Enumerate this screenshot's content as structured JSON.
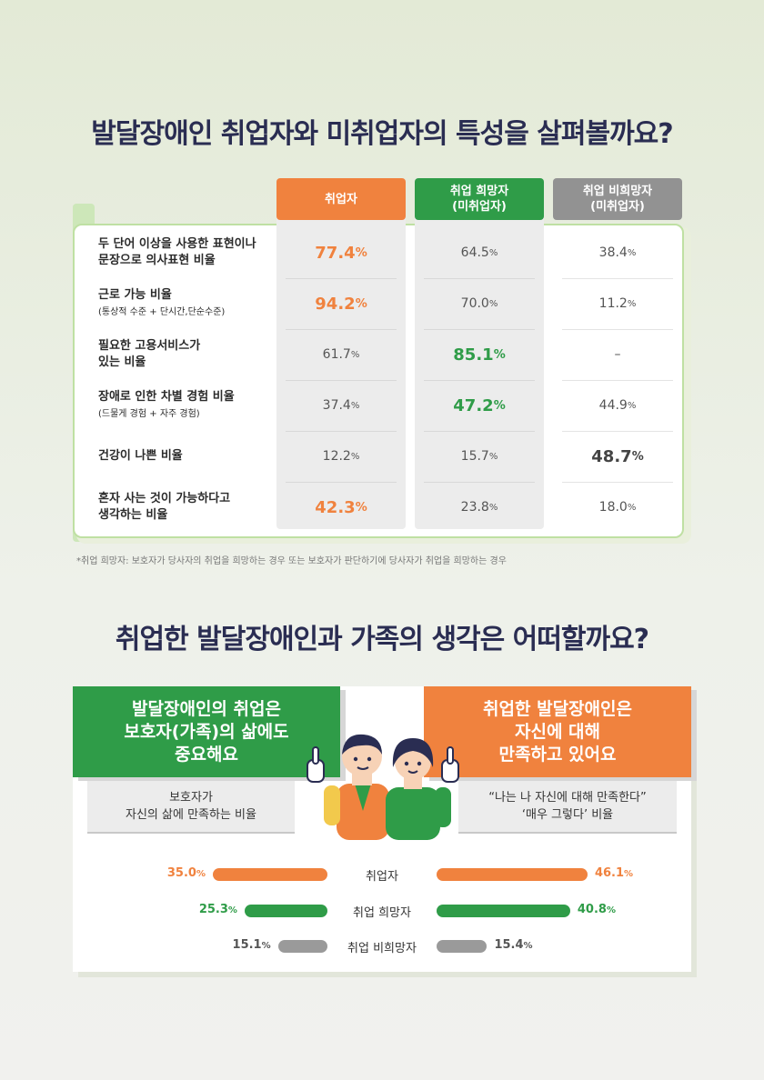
{
  "titles": {
    "table": "발달장애인 취업자와 미취업자의 특성을 살펴볼까요?",
    "satisfaction": "취업한 발달장애인과 가족의 생각은 어떠할까요?"
  },
  "colors": {
    "orange": "#f0823e",
    "green": "#2f9c48",
    "gray": "#929292",
    "navy": "#2a2d52"
  },
  "table": {
    "columns": [
      "취업자",
      "취업 희망자\n(미취업자)",
      "취업 비희망자\n(미취업자)"
    ],
    "rows": [
      {
        "label": "두 단어 이상을 사용한 표현이나",
        "label2": "문장으로 의사표현 비율",
        "sub": "",
        "values": [
          "77.4",
          "64.5",
          "38.4"
        ],
        "highlight": 0
      },
      {
        "label": "근로 가능 비율",
        "label2": "",
        "sub": "(통상적 수준 + 단시간,단순수준)",
        "values": [
          "94.2",
          "70.0",
          "11.2"
        ],
        "highlight": 0
      },
      {
        "label": "필요한 고용서비스가",
        "label2": "있는 비율",
        "sub": "",
        "values": [
          "61.7",
          "85.1",
          "–"
        ],
        "highlight": 1
      },
      {
        "label": "장애로 인한 차별 경험 비율",
        "label2": "",
        "sub": "(드물게 경험 + 자주 경험)",
        "values": [
          "37.4",
          "47.2",
          "44.9"
        ],
        "highlight": 1
      },
      {
        "label": "건강이 나쁜 비율",
        "label2": "",
        "sub": "",
        "values": [
          "12.2",
          "15.7",
          "48.7"
        ],
        "highlight": 2
      },
      {
        "label": "혼자 사는 것이 가능하다고",
        "label2": "생각하는 비율",
        "sub": "",
        "values": [
          "42.3",
          "23.8",
          "18.0"
        ],
        "highlight": 0
      }
    ],
    "unit": "%",
    "footnote": "*취업 희망자: 보호자가 당사자의 취업을 희망하는 경우 또는 보호자가 판단하기에 당사자가 취업을 희망하는 경우"
  },
  "satisfaction": {
    "left_banner": [
      "발달장애인의 취업은",
      "보호자(가족)의 삶에도",
      "중요해요"
    ],
    "right_banner": [
      "취업한 발달장애인은",
      "자신에 대해",
      "만족하고 있어요"
    ],
    "left_subhead": [
      "보호자가",
      "자신의 삶에 만족하는 비율"
    ],
    "right_subhead": [
      "“나는 나 자신에 대해 만족한다”",
      "‘매우 그렇다’ 비율"
    ]
  },
  "chart_data": {
    "type": "bar",
    "categories": [
      "취업자",
      "취업 희망자",
      "취업 비희망자"
    ],
    "series": [
      {
        "name": "보호자가 자신의 삶에 만족하는 비율",
        "values": [
          35.0,
          25.3,
          15.1
        ]
      },
      {
        "name": "“나는 나 자신에 대해 만족한다” ‘매우 그렇다’ 비율",
        "values": [
          46.1,
          40.8,
          15.4
        ]
      }
    ],
    "category_colors": [
      "#f0823e",
      "#2f9c48",
      "#9a9a9a"
    ],
    "unit": "%"
  }
}
